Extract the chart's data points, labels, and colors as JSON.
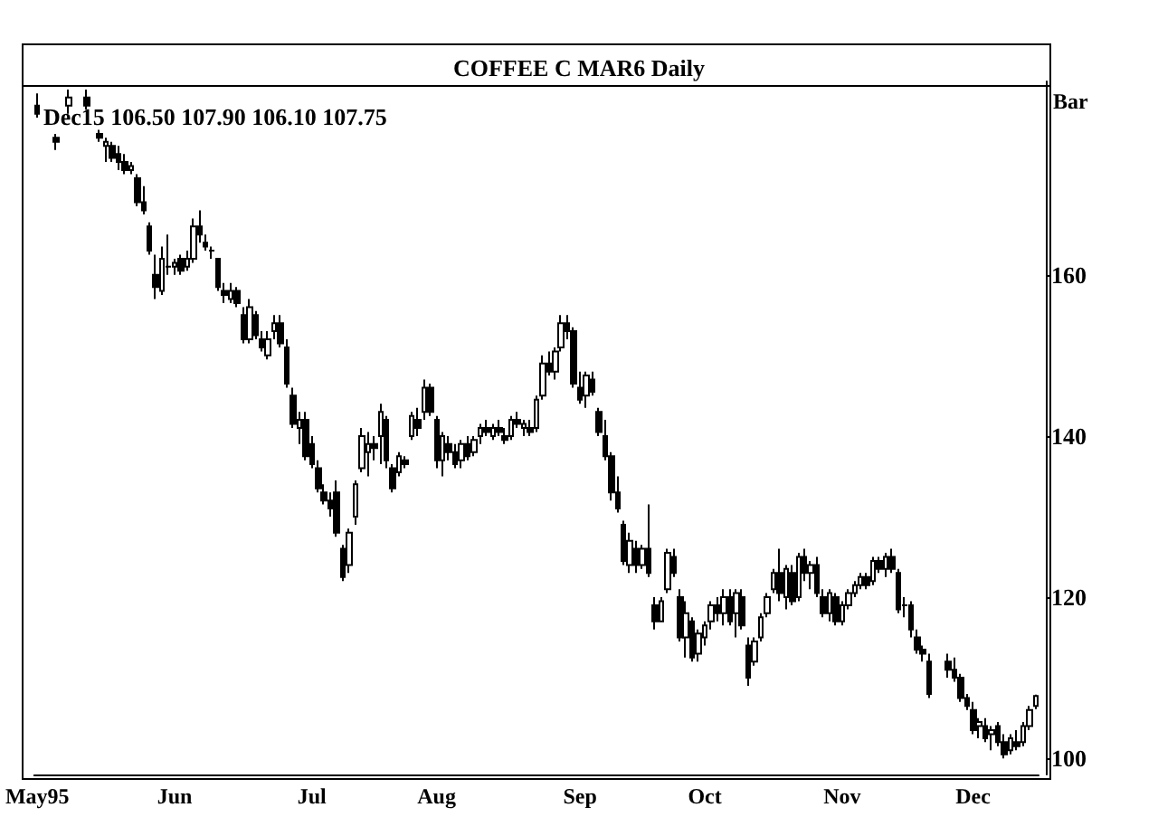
{
  "chart_data": {
    "type": "candlestick",
    "title": "COFFEE C MAR6 Daily",
    "ylabel": "Bar",
    "annotations": [
      "Dec15 106.50 107.90 106.10 107.75"
    ],
    "color": "#000000",
    "ylim": [
      98,
      184
    ],
    "yticks": [
      100,
      120,
      140,
      160
    ],
    "categories": [
      "May95",
      null,
      null,
      null,
      null,
      null,
      null,
      null,
      null,
      null,
      null,
      null,
      null,
      null,
      null,
      null,
      null,
      null,
      null,
      null,
      null,
      null,
      "Jun",
      null,
      null,
      null,
      null,
      null,
      null,
      null,
      null,
      null,
      null,
      null,
      null,
      null,
      null,
      null,
      null,
      null,
      null,
      null,
      null,
      null,
      "Jul",
      null,
      null,
      null,
      null,
      null,
      null,
      null,
      null,
      null,
      null,
      null,
      null,
      null,
      null,
      null,
      null,
      null,
      null,
      null,
      "Aug",
      null,
      null,
      null,
      null,
      null,
      null,
      null,
      null,
      null,
      null,
      null,
      null,
      null,
      null,
      null,
      null,
      null,
      null,
      null,
      null,
      null,
      null,
      "Sep",
      null,
      null,
      null,
      null,
      null,
      null,
      null,
      null,
      null,
      null,
      null,
      null,
      null,
      null,
      null,
      null,
      null,
      null,
      null,
      "Oct",
      null,
      null,
      null,
      null,
      null,
      null,
      null,
      null,
      null,
      null,
      null,
      null,
      null,
      null,
      null,
      null,
      null,
      null,
      null,
      null,
      null,
      "Nov",
      null,
      null,
      null,
      null,
      null,
      null,
      null,
      null,
      null,
      null,
      null,
      null,
      null,
      null,
      null,
      null,
      null,
      null,
      null,
      null,
      "Dec",
      null,
      null,
      null,
      null,
      null,
      null,
      null,
      null,
      null,
      null
    ],
    "ohlc": [
      [
        181,
        182.5,
        179.5,
        180
      ],
      null,
      null,
      [
        177,
        177.5,
        175.5,
        176.5
      ],
      null,
      [
        181,
        183,
        180,
        182
      ],
      null,
      null,
      [
        182,
        183,
        180.5,
        181
      ],
      null,
      [
        177.5,
        178,
        176.5,
        177
      ],
      [
        176,
        177,
        174,
        176.5
      ],
      [
        176,
        176.5,
        174,
        174.5
      ],
      [
        175,
        176,
        173,
        174
      ],
      [
        174,
        175,
        172.5,
        173
      ],
      [
        173,
        174,
        172.5,
        173.5
      ],
      [
        172,
        172.5,
        168.5,
        169
      ],
      [
        169,
        171,
        167.5,
        168
      ],
      [
        166,
        166.5,
        162.5,
        163
      ],
      [
        160,
        162.5,
        157,
        158.5
      ],
      [
        158,
        163.5,
        157.5,
        162
      ],
      [
        161,
        165,
        160,
        161
      ],
      [
        161,
        162,
        160,
        161.5
      ],
      [
        162,
        162.5,
        160,
        160.5
      ],
      [
        161,
        163,
        160.5,
        162
      ],
      [
        162,
        167,
        161.5,
        166
      ],
      [
        166,
        168,
        164,
        165
      ],
      [
        164,
        165,
        163,
        163.5
      ],
      [
        163,
        163.5,
        162,
        163
      ],
      [
        162,
        162,
        158,
        158.5
      ],
      [
        158,
        159,
        156.5,
        157.5
      ],
      [
        157,
        159,
        156.5,
        158
      ],
      [
        158,
        158.5,
        156,
        156.5
      ],
      [
        155,
        156,
        151.5,
        152
      ],
      [
        152,
        157,
        151.5,
        156
      ],
      [
        155,
        155.5,
        152,
        152.5
      ],
      [
        152,
        153,
        150.5,
        151
      ],
      [
        150,
        153,
        149.5,
        152
      ],
      [
        153,
        155,
        152,
        154
      ],
      [
        154,
        155,
        151,
        151.5
      ],
      [
        151,
        152,
        146,
        146.5
      ],
      [
        145,
        146,
        141,
        141.5
      ],
      [
        141,
        143,
        139,
        142
      ],
      [
        142,
        143,
        137,
        137.5
      ],
      [
        139,
        140,
        136,
        136.5
      ],
      [
        136,
        137,
        133,
        133.5
      ],
      [
        133,
        134,
        131.5,
        132
      ],
      [
        132,
        133,
        130,
        131
      ],
      [
        133,
        134.5,
        127.5,
        128
      ],
      [
        126,
        126.5,
        122,
        122.5
      ],
      [
        124,
        128.5,
        123,
        128
      ],
      [
        130,
        134.5,
        129,
        134
      ],
      [
        136,
        141,
        135.5,
        140
      ],
      [
        138,
        140.5,
        135,
        139
      ],
      [
        139,
        140,
        137,
        138.5
      ],
      [
        140,
        144,
        136.5,
        143
      ],
      [
        142,
        142.5,
        136,
        137
      ],
      [
        136,
        136.5,
        133,
        133.5
      ],
      [
        135.5,
        138,
        135,
        137.5
      ],
      [
        137,
        137.5,
        136,
        136.5
      ],
      [
        140,
        143,
        139.5,
        142.5
      ],
      [
        142,
        143.5,
        140,
        141
      ],
      [
        143,
        147,
        142,
        146
      ],
      [
        146,
        146.5,
        142.5,
        143
      ],
      [
        142,
        142.5,
        136,
        137
      ],
      [
        137,
        140.5,
        135,
        140
      ],
      [
        139,
        140,
        137,
        138
      ],
      [
        138,
        139,
        136,
        136.5
      ],
      [
        137,
        139.5,
        136,
        139
      ],
      [
        139,
        140,
        137,
        137.5
      ],
      [
        138,
        140,
        137.5,
        139.5
      ],
      [
        140,
        141.5,
        139,
        141
      ],
      [
        141,
        142,
        140,
        140.5
      ],
      [
        140,
        141.5,
        139.5,
        141
      ],
      [
        141,
        142,
        140,
        140.5
      ],
      [
        140,
        141,
        139,
        139.5
      ],
      [
        140,
        142.5,
        139.5,
        142
      ],
      [
        142,
        143,
        141,
        141.5
      ],
      [
        141,
        142,
        140,
        141.5
      ],
      [
        141,
        142,
        140,
        140.5
      ],
      [
        141,
        145,
        140.5,
        144.5
      ],
      [
        145,
        150,
        144.5,
        149
      ],
      [
        149,
        150.5,
        147.5,
        148
      ],
      [
        148,
        151,
        147,
        150.5
      ],
      [
        151,
        155,
        150.5,
        154
      ],
      [
        154,
        155,
        152,
        153
      ],
      [
        153,
        153.5,
        146,
        146.5
      ],
      [
        146,
        148,
        144,
        144.5
      ],
      [
        145,
        148,
        143.5,
        147.5
      ],
      [
        147,
        148,
        145,
        145.5
      ],
      [
        143,
        143.5,
        140,
        140.5
      ],
      [
        140,
        142,
        137,
        137.5
      ],
      [
        137.5,
        138,
        132,
        133
      ],
      [
        133,
        135,
        130.5,
        131
      ],
      [
        129,
        129.5,
        124,
        124.5
      ],
      [
        124,
        128,
        123,
        127
      ],
      [
        126,
        127,
        123,
        124
      ],
      [
        124,
        126.5,
        123.5,
        126
      ],
      [
        126,
        131.5,
        122.5,
        123
      ],
      [
        119,
        120,
        116,
        117
      ],
      [
        117,
        120,
        117,
        119.5
      ],
      [
        121,
        126,
        120.5,
        125.5
      ],
      [
        125,
        126,
        122.5,
        123
      ],
      [
        120,
        121,
        114.5,
        115
      ],
      [
        115,
        119.5,
        112.5,
        118
      ],
      [
        117,
        117.5,
        112,
        112.5
      ],
      [
        113,
        116,
        112,
        115.5
      ],
      [
        115,
        117,
        114,
        116.5
      ],
      [
        117,
        119.5,
        116,
        119
      ],
      [
        119,
        120,
        117,
        118
      ],
      [
        118,
        121,
        116.5,
        120
      ],
      [
        120,
        121,
        116.5,
        117
      ],
      [
        118,
        121,
        115,
        120.5
      ],
      [
        120,
        121,
        116,
        116.5
      ],
      [
        114,
        115,
        109,
        110
      ],
      [
        112,
        115,
        111.5,
        114.5
      ],
      [
        115,
        118,
        114.5,
        117.5
      ],
      [
        118,
        120.5,
        117.5,
        120
      ],
      [
        121,
        123.5,
        120.5,
        123
      ],
      [
        123,
        126,
        119.5,
        120.5
      ],
      [
        120,
        124,
        118.5,
        123.5
      ],
      [
        123,
        124,
        119,
        119.5
      ],
      [
        120,
        125.5,
        119.5,
        125
      ],
      [
        125,
        126,
        122,
        123
      ],
      [
        123,
        124.5,
        121,
        124
      ],
      [
        124,
        125,
        120,
        120.5
      ],
      [
        120,
        121,
        117.5,
        118
      ],
      [
        118,
        121,
        117,
        120.5
      ],
      [
        120,
        120.5,
        116.5,
        117
      ],
      [
        117,
        119.5,
        116.5,
        119
      ],
      [
        119,
        121,
        118.5,
        120.5
      ],
      [
        120.5,
        122,
        120,
        121.5
      ],
      [
        121.5,
        123,
        121,
        122.5
      ],
      [
        122.5,
        123,
        121,
        121.5
      ],
      [
        122,
        125,
        121.5,
        124.5
      ],
      [
        124.5,
        125,
        123,
        123.5
      ],
      [
        123.5,
        125.5,
        122.5,
        125
      ],
      [
        125,
        126,
        123,
        123.5
      ],
      [
        123,
        123.5,
        118,
        118.5
      ],
      [
        119,
        120,
        117.5,
        119
      ],
      [
        119,
        119.5,
        115,
        116
      ],
      [
        115,
        116,
        113,
        113.5
      ],
      [
        113.5,
        114,
        112,
        113
      ],
      [
        112,
        113,
        107.5,
        108
      ],
      null,
      null,
      [
        112,
        113,
        110,
        111
      ],
      [
        111,
        112.5,
        109.5,
        110
      ],
      [
        110,
        110.5,
        107,
        107.5
      ],
      [
        107.5,
        108,
        106,
        106.5
      ],
      [
        106,
        107,
        103,
        103.5
      ],
      [
        104,
        105,
        102.5,
        104.5
      ],
      [
        104,
        105,
        102,
        102.5
      ],
      [
        103,
        104,
        101,
        103.5
      ],
      [
        104,
        104.5,
        101.5,
        102
      ],
      [
        102,
        103,
        100,
        100.5
      ],
      [
        101,
        103,
        100.5,
        102.5
      ],
      [
        102,
        103.5,
        101,
        101.5
      ],
      [
        102,
        104.5,
        101.5,
        104
      ],
      [
        104,
        106.5,
        103.5,
        106
      ],
      [
        106.5,
        107.9,
        106.1,
        107.75
      ]
    ]
  }
}
